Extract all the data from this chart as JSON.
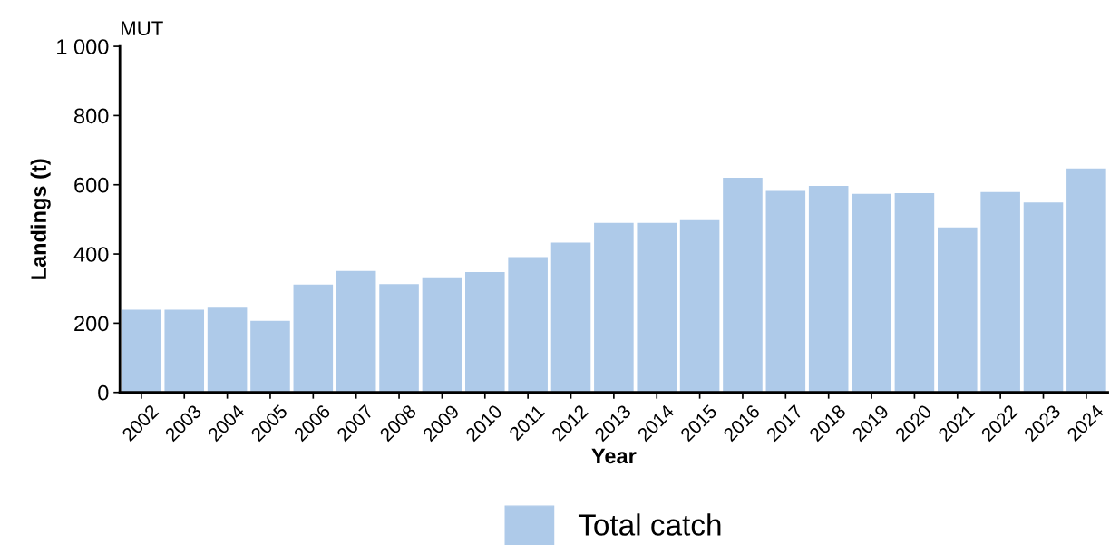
{
  "chart_data": {
    "type": "bar",
    "title": "MUT",
    "xlabel": "Year",
    "ylabel": "Landings (t)",
    "categories": [
      "2002",
      "2003",
      "2004",
      "2005",
      "2006",
      "2007",
      "2008",
      "2009",
      "2010",
      "2011",
      "2012",
      "2013",
      "2014",
      "2015",
      "2016",
      "2017",
      "2018",
      "2019",
      "2020",
      "2021",
      "2022",
      "2023",
      "2024"
    ],
    "series": [
      {
        "name": "Total catch",
        "color": "#aecae9",
        "values": [
          239,
          239,
          245,
          207,
          312,
          351,
          313,
          330,
          348,
          391,
          433,
          490,
          490,
          498,
          620,
          582,
          597,
          574,
          576,
          477,
          579,
          549,
          647
        ]
      }
    ],
    "ylim": [
      0,
      1000
    ],
    "yticks": [
      0,
      200,
      400,
      600,
      800,
      {
        "value": 1000,
        "label": "1 000"
      }
    ],
    "grid": false,
    "legend": "bottom"
  }
}
